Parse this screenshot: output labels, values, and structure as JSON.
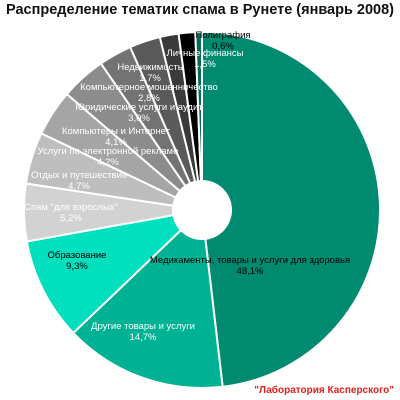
{
  "chart_data": {
    "type": "pie",
    "title": "Распределение тематик спама в Рунете (январь 2008)",
    "source": "\"Лаборатория Касперского\"",
    "slices": [
      {
        "label": "Медикаменты, товары и услуги для здоровья",
        "value_label": "48,1%",
        "value": 48.1,
        "color": "#008a70",
        "text_color": "#000000"
      },
      {
        "label": "Другие товары и услуги",
        "value_label": "14,7%",
        "value": 14.7,
        "color": "#00b294",
        "text_color": "#ffffff"
      },
      {
        "label": "Образование",
        "value_label": "9,3%",
        "value": 9.3,
        "color": "#00dfbe",
        "text_color": "#000000"
      },
      {
        "label": "Спам \"для взрослых\"",
        "value_label": "5,2%",
        "value": 5.2,
        "color": "#d2d2d2",
        "text_color": "#ffffff"
      },
      {
        "label": "Отдых и путешествия",
        "value_label": "4,7%",
        "value": 4.7,
        "color": "#bebebe",
        "text_color": "#ffffff"
      },
      {
        "label": "Услуги по электронной рекламе",
        "value_label": "4,2%",
        "value": 4.2,
        "color": "#a5a5a5",
        "text_color": "#ffffff"
      },
      {
        "label": "Компьютеры и Интернет",
        "value_label": "4,1%",
        "value": 4.1,
        "color": "#8c8c8c",
        "text_color": "#ffffff"
      },
      {
        "label": "Юридические услуги и аудит",
        "value_label": "3,0%",
        "value": 3.0,
        "color": "#737373",
        "text_color": "#ffffff"
      },
      {
        "label": "Компьютерное мошенничество",
        "value_label": "2,8%",
        "value": 2.8,
        "color": "#5a5a5a",
        "text_color": "#ffffff"
      },
      {
        "label": "Недвижимость",
        "value_label": "1,7%",
        "value": 1.7,
        "color": "#3a3a3a",
        "text_color": "#ffffff"
      },
      {
        "label": "Личные финансы",
        "value_label": "1,5%",
        "value": 1.5,
        "color": "#000000",
        "text_color": "#ffffff"
      },
      {
        "label": "Полиграфия",
        "value_label": "0,6%",
        "value": 0.6,
        "color": "#006b56",
        "text_color": "#000000"
      }
    ]
  }
}
